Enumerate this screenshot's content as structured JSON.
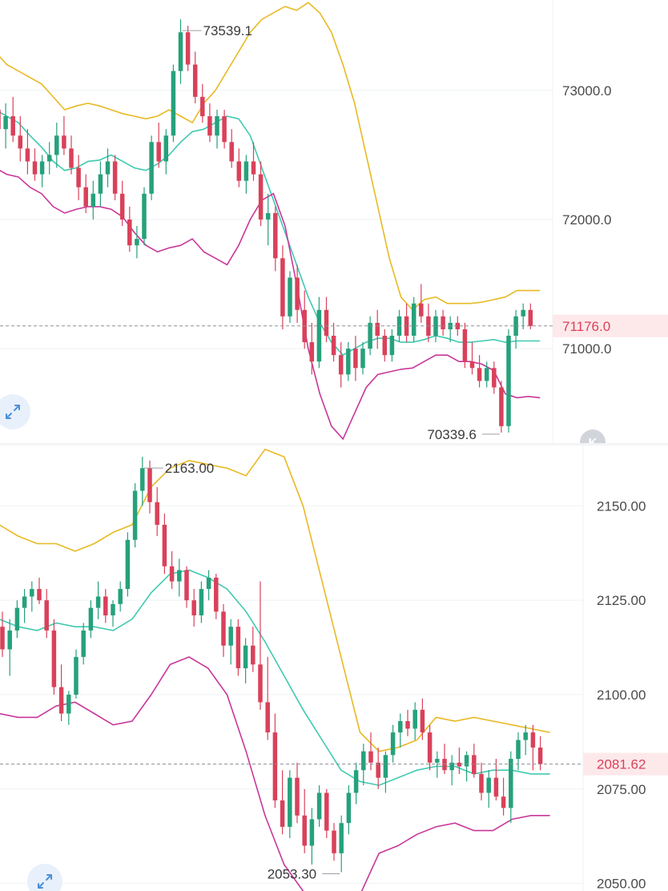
{
  "colors": {
    "up": "#26a17b",
    "down": "#d9415a",
    "band_upper": "#e8b923",
    "band_middle": "#40c9b0",
    "band_lower": "#c8379a",
    "axis_text": "#4a4a4a",
    "last_price_text": "#d9415a",
    "last_price_bg": "#fde8ea",
    "grid": "#eef2f6"
  },
  "icons": {
    "expand": "expand-arrows-icon",
    "k": "k-line-icon"
  },
  "chart_data": [
    {
      "type": "candlestick",
      "yticks": [
        73000,
        72000,
        71000
      ],
      "ytick_labels": [
        "73000.0",
        "72000.0",
        "71000.0"
      ],
      "ylim": [
        70250,
        73700
      ],
      "last_price": 71176.0,
      "last_price_label": "71176.0",
      "high_label": "73539.1",
      "low_label": "70339.6",
      "indicator": "bollinger",
      "candles": [
        [
          72850,
          72950,
          72600,
          72700
        ],
        [
          72700,
          72900,
          72550,
          72800
        ],
        [
          72800,
          72950,
          72600,
          72650
        ],
        [
          72650,
          72800,
          72450,
          72550
        ],
        [
          72550,
          72700,
          72350,
          72450
        ],
        [
          72450,
          72550,
          72300,
          72350
        ],
        [
          72350,
          72500,
          72250,
          72450
        ],
        [
          72450,
          72600,
          72350,
          72500
        ],
        [
          72500,
          72750,
          72400,
          72650
        ],
        [
          72650,
          72800,
          72500,
          72550
        ],
        [
          72550,
          72650,
          72350,
          72400
        ],
        [
          72400,
          72500,
          72150,
          72250
        ],
        [
          72250,
          72350,
          72050,
          72100
        ],
        [
          72100,
          72300,
          72000,
          72200
        ],
        [
          72200,
          72450,
          72100,
          72350
        ],
        [
          72350,
          72550,
          72250,
          72450
        ],
        [
          72450,
          72500,
          72150,
          72200
        ],
        [
          72200,
          72300,
          71950,
          72000
        ],
        [
          72000,
          72100,
          71750,
          71800
        ],
        [
          71800,
          71950,
          71700,
          71850
        ],
        [
          71850,
          72250,
          71800,
          72200
        ],
        [
          72200,
          72650,
          72150,
          72600
        ],
        [
          72600,
          72750,
          72400,
          72450
        ],
        [
          72450,
          72700,
          72350,
          72650
        ],
        [
          72650,
          73200,
          72600,
          73150
        ],
        [
          73150,
          73550,
          73050,
          73450
        ],
        [
          73450,
          73500,
          73150,
          73200
        ],
        [
          73200,
          73300,
          72900,
          72950
        ],
        [
          72950,
          73050,
          72750,
          72800
        ],
        [
          72800,
          72900,
          72600,
          72650
        ],
        [
          72650,
          72850,
          72550,
          72800
        ],
        [
          72800,
          72850,
          72550,
          72600
        ],
        [
          72600,
          72700,
          72400,
          72450
        ],
        [
          72450,
          72550,
          72250,
          72300
        ],
        [
          72300,
          72500,
          72200,
          72450
        ],
        [
          72450,
          72600,
          72300,
          72350
        ],
        [
          72350,
          72450,
          71950,
          72000
        ],
        [
          72000,
          72200,
          71800,
          72050
        ],
        [
          72050,
          72100,
          71600,
          71700
        ],
        [
          71700,
          71800,
          71150,
          71250
        ],
        [
          71250,
          71600,
          71200,
          71550
        ],
        [
          71550,
          71650,
          71200,
          71300
        ],
        [
          71300,
          71450,
          71000,
          71050
        ],
        [
          71050,
          71200,
          70800,
          70900
        ],
        [
          70900,
          71400,
          70850,
          71300
        ],
        [
          71300,
          71400,
          71050,
          71100
        ],
        [
          71100,
          71200,
          70900,
          70950
        ],
        [
          70950,
          71050,
          70700,
          70800
        ],
        [
          70800,
          71050,
          70750,
          71000
        ],
        [
          71000,
          71100,
          70750,
          70850
        ],
        [
          70850,
          71050,
          70800,
          71000
        ],
        [
          71000,
          71250,
          70950,
          71200
        ],
        [
          71200,
          71300,
          71000,
          71100
        ],
        [
          71100,
          71150,
          70900,
          70950
        ],
        [
          70950,
          71150,
          70900,
          71100
        ],
        [
          71100,
          71300,
          71050,
          71250
        ],
        [
          71250,
          71350,
          71050,
          71100
        ],
        [
          71100,
          71400,
          71050,
          71350
        ],
        [
          71350,
          71500,
          71200,
          71250
        ],
        [
          71250,
          71350,
          71050,
          71100
        ],
        [
          71100,
          71300,
          71050,
          71250
        ],
        [
          71250,
          71300,
          71100,
          71150
        ],
        [
          71150,
          71250,
          71050,
          71200
        ],
        [
          71200,
          71250,
          71100,
          71150
        ],
        [
          71150,
          71200,
          70850,
          70900
        ],
        [
          70900,
          71050,
          70800,
          70850
        ],
        [
          70850,
          70950,
          70700,
          70750
        ],
        [
          70750,
          70900,
          70700,
          70850
        ],
        [
          70850,
          70900,
          70650,
          70700
        ],
        [
          70700,
          70750,
          70350,
          70400
        ],
        [
          70400,
          71150,
          70350,
          71100
        ],
        [
          71100,
          71300,
          71000,
          71250
        ],
        [
          71250,
          71350,
          71150,
          71300
        ],
        [
          71300,
          71350,
          71150,
          71176
        ]
      ],
      "upper": [
        73300,
        73200,
        73150,
        73100,
        73050,
        72950,
        72850,
        72880,
        72900,
        72880,
        72850,
        72820,
        72800,
        72780,
        72800,
        72850,
        72800,
        72750,
        72900,
        73000,
        73150,
        73300,
        73450,
        73550,
        73600,
        73650,
        73620,
        73680,
        73600,
        73450,
        73200,
        72900,
        72500,
        72100,
        71700,
        71400,
        71300,
        71380,
        71400,
        71350,
        71350,
        71350,
        71360,
        71380,
        71400,
        71450,
        71450,
        71450
      ],
      "middle": [
        72850,
        72800,
        72750,
        72650,
        72560,
        72450,
        72380,
        72400,
        72450,
        72460,
        72500,
        72450,
        72400,
        72380,
        72430,
        72500,
        72600,
        72680,
        72700,
        72750,
        72800,
        72780,
        72650,
        72400,
        72150,
        71900,
        71650,
        71400,
        71200,
        71050,
        70950,
        71000,
        71050,
        71080,
        71080,
        71050,
        71050,
        71070,
        71100,
        71080,
        71050,
        71050,
        71060,
        71070,
        71050,
        71060,
        71060,
        71060
      ],
      "lower": [
        72400,
        72350,
        72330,
        72250,
        72200,
        72100,
        72050,
        72080,
        72100,
        72100,
        72080,
        72020,
        71900,
        71800,
        71750,
        71780,
        71800,
        71850,
        71750,
        71700,
        71650,
        71800,
        72000,
        72150,
        72200,
        71950,
        71500,
        71000,
        70650,
        70400,
        70300,
        70500,
        70700,
        70800,
        70820,
        70840,
        70850,
        70900,
        70950,
        70950,
        70900,
        70900,
        70880,
        70830,
        70650,
        70620,
        70630,
        70620
      ]
    },
    {
      "type": "candlestick",
      "yticks": [
        2150,
        2125,
        2100,
        2075,
        2050
      ],
      "ytick_labels": [
        "2150.00",
        "2125.00",
        "2100.00",
        "2075.00",
        "2050.00"
      ],
      "ylim": [
        2048,
        2166
      ],
      "last_price": 2081.62,
      "last_price_label": "2081.62",
      "high_label": "2163.00",
      "low_label": "2053.30",
      "indicator": "bollinger",
      "candles": [
        [
          2118,
          2122,
          2110,
          2112
        ],
        [
          2112,
          2120,
          2105,
          2117
        ],
        [
          2117,
          2125,
          2115,
          2123
        ],
        [
          2123,
          2128,
          2119,
          2126
        ],
        [
          2126,
          2130,
          2122,
          2128
        ],
        [
          2128,
          2131,
          2124,
          2125
        ],
        [
          2125,
          2128,
          2115,
          2117
        ],
        [
          2117,
          2120,
          2100,
          2102
        ],
        [
          2102,
          2108,
          2093,
          2095
        ],
        [
          2095,
          2101,
          2092,
          2100
        ],
        [
          2100,
          2112,
          2099,
          2110
        ],
        [
          2110,
          2119,
          2108,
          2117
        ],
        [
          2117,
          2125,
          2115,
          2123
        ],
        [
          2123,
          2130,
          2120,
          2126
        ],
        [
          2126,
          2128,
          2119,
          2121
        ],
        [
          2121,
          2125,
          2118,
          2124
        ],
        [
          2124,
          2130,
          2122,
          2128
        ],
        [
          2128,
          2143,
          2126,
          2141
        ],
        [
          2141,
          2156,
          2139,
          2154
        ],
        [
          2154,
          2163,
          2150,
          2160
        ],
        [
          2160,
          2162,
          2148,
          2151
        ],
        [
          2151,
          2155,
          2142,
          2145
        ],
        [
          2145,
          2148,
          2132,
          2134
        ],
        [
          2134,
          2138,
          2128,
          2130
        ],
        [
          2130,
          2136,
          2126,
          2133
        ],
        [
          2133,
          2134,
          2123,
          2125
        ],
        [
          2125,
          2128,
          2118,
          2121
        ],
        [
          2121,
          2130,
          2119,
          2128
        ],
        [
          2128,
          2133,
          2125,
          2131
        ],
        [
          2131,
          2132,
          2120,
          2122
        ],
        [
          2122,
          2124,
          2110,
          2113
        ],
        [
          2113,
          2120,
          2108,
          2118
        ],
        [
          2118,
          2120,
          2105,
          2107
        ],
        [
          2107,
          2115,
          2103,
          2113
        ],
        [
          2113,
          2118,
          2106,
          2108
        ],
        [
          2108,
          2130,
          2096,
          2098
        ],
        [
          2098,
          2110,
          2088,
          2090
        ],
        [
          2090,
          2095,
          2070,
          2072
        ],
        [
          2072,
          2080,
          2063,
          2065
        ],
        [
          2065,
          2080,
          2062,
          2078
        ],
        [
          2078,
          2082,
          2066,
          2068
        ],
        [
          2068,
          2075,
          2058,
          2060
        ],
        [
          2060,
          2070,
          2055,
          2067
        ],
        [
          2067,
          2076,
          2065,
          2074
        ],
        [
          2074,
          2075,
          2062,
          2064
        ],
        [
          2064,
          2066,
          2056,
          2058
        ],
        [
          2058,
          2068,
          2053,
          2066
        ],
        [
          2066,
          2076,
          2063,
          2074
        ],
        [
          2074,
          2082,
          2071,
          2080
        ],
        [
          2080,
          2087,
          2076,
          2085
        ],
        [
          2085,
          2090,
          2080,
          2082
        ],
        [
          2082,
          2086,
          2075,
          2078
        ],
        [
          2078,
          2085,
          2074,
          2084
        ],
        [
          2084,
          2092,
          2082,
          2090
        ],
        [
          2090,
          2095,
          2086,
          2093
        ],
        [
          2093,
          2096,
          2089,
          2091
        ],
        [
          2091,
          2098,
          2088,
          2096
        ],
        [
          2096,
          2099,
          2088,
          2090
        ],
        [
          2090,
          2092,
          2080,
          2082
        ],
        [
          2082,
          2085,
          2078,
          2083
        ],
        [
          2083,
          2087,
          2079,
          2080
        ],
        [
          2080,
          2084,
          2076,
          2082
        ],
        [
          2082,
          2086,
          2079,
          2081
        ],
        [
          2081,
          2085,
          2077,
          2084
        ],
        [
          2084,
          2087,
          2078,
          2079
        ],
        [
          2079,
          2082,
          2072,
          2074
        ],
        [
          2074,
          2080,
          2070,
          2078
        ],
        [
          2078,
          2083,
          2072,
          2073
        ],
        [
          2073,
          2078,
          2068,
          2070
        ],
        [
          2070,
          2085,
          2066,
          2083
        ],
        [
          2083,
          2090,
          2080,
          2088
        ],
        [
          2088,
          2092,
          2084,
          2090
        ],
        [
          2090,
          2092,
          2080,
          2086
        ],
        [
          2086,
          2089,
          2080,
          2081.62
        ]
      ],
      "upper": [
        2145,
        2142,
        2140,
        2140,
        2138,
        2140,
        2143,
        2145,
        2155,
        2160,
        2162,
        2161,
        2160,
        2158,
        2165,
        2163,
        2150,
        2130,
        2110,
        2090,
        2085,
        2086,
        2088,
        2094,
        2093,
        2094,
        2093,
        2092,
        2091,
        2090
      ],
      "middle": [
        2120,
        2118,
        2117,
        2119,
        2118,
        2118,
        2117,
        2120,
        2127,
        2132,
        2133,
        2131,
        2128,
        2122,
        2114,
        2105,
        2096,
        2088,
        2080,
        2077,
        2076,
        2078,
        2080,
        2081,
        2081,
        2079,
        2080,
        2080,
        2079,
        2079
      ],
      "lower": [
        2095,
        2094,
        2094,
        2097,
        2098,
        2095,
        2092,
        2093,
        2100,
        2108,
        2110,
        2107,
        2100,
        2085,
        2068,
        2055,
        2048,
        2045,
        2042,
        2047,
        2058,
        2060,
        2063,
        2065,
        2066,
        2064,
        2064,
        2067,
        2068,
        2068
      ]
    }
  ]
}
